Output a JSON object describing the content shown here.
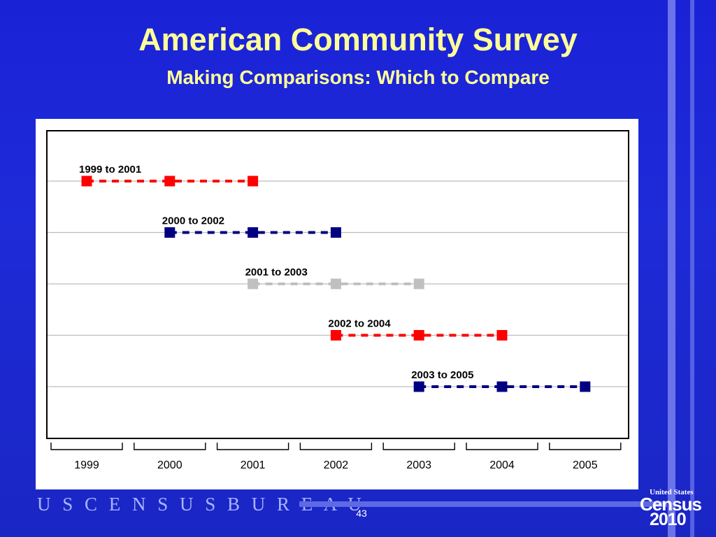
{
  "slide": {
    "title": "American Community Survey",
    "subtitle": "Making Comparisons:  Which to Compare",
    "footer_bureau": "U S C E N S U S B U R E A U",
    "page_number": "43",
    "logo_top": "United States",
    "logo_mid": "Census",
    "logo_year": "2010"
  },
  "colors": {
    "background": "#1e2bd8",
    "title": "#ffff99",
    "red": "#ff0000",
    "navy": "#000080",
    "gray": "#c0c0c0"
  },
  "chart_data": {
    "type": "line",
    "x": [
      "1999",
      "2000",
      "2001",
      "2002",
      "2003",
      "2004",
      "2005"
    ],
    "grid": true,
    "series": [
      {
        "name": "1999 to 2001",
        "x": [
          "1999",
          "2000",
          "2001"
        ],
        "color": "#ff0000"
      },
      {
        "name": "2000 to 2002",
        "x": [
          "2000",
          "2001",
          "2002"
        ],
        "color": "#000080"
      },
      {
        "name": "2001 to 2003",
        "x": [
          "2001",
          "2002",
          "2003"
        ],
        "color": "#c0c0c0"
      },
      {
        "name": "2002 to 2004",
        "x": [
          "2002",
          "2003",
          "2004"
        ],
        "color": "#ff0000"
      },
      {
        "name": "2003 to 2005",
        "x": [
          "2003",
          "2004",
          "2005"
        ],
        "color": "#000080"
      }
    ]
  }
}
